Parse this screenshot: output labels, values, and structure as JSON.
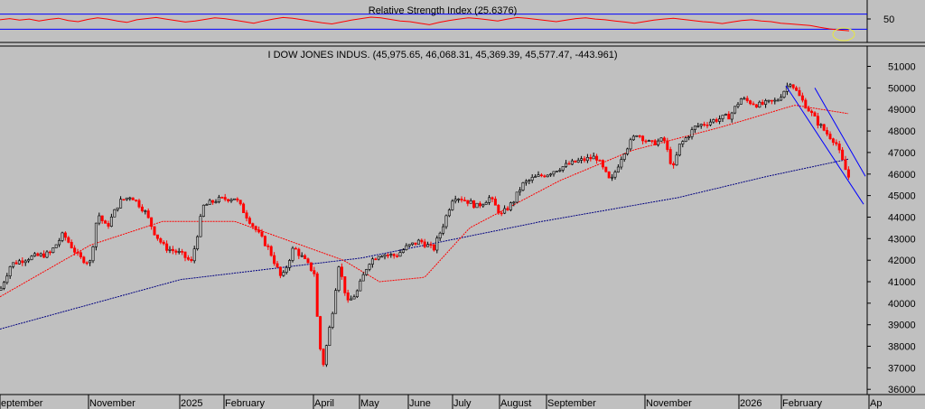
{
  "colors": {
    "background": "#c0c0c0",
    "candle_up": "#000000",
    "candle_down": "#ff0000",
    "ma_short": "#ff0000",
    "ma_long": "#000080",
    "rsi_line": "#ff0000",
    "rsi_levels": "#0000ff",
    "channel": "#0000ff",
    "highlight": "#e8e83c"
  },
  "chart_data": [
    {
      "type": "line",
      "panel": "rsi",
      "title": "Relative Strength Index (25.6376)",
      "series": [
        {
          "values": [
            55,
            58,
            54,
            57,
            52,
            56,
            59,
            53,
            50,
            56,
            60,
            57,
            52,
            48,
            55,
            58,
            61,
            57,
            53,
            49,
            52,
            56,
            60,
            58,
            54,
            50,
            46,
            52,
            57,
            61,
            59,
            55,
            51,
            47,
            44,
            49,
            54,
            58,
            62,
            60,
            56,
            52,
            50,
            46,
            42,
            48,
            53,
            57,
            60,
            58,
            55,
            52,
            57,
            61,
            59,
            56,
            53,
            50,
            54,
            58,
            60,
            57,
            55,
            52,
            49,
            46,
            50,
            54,
            57,
            59,
            56,
            53,
            50,
            48,
            45,
            49,
            53,
            55,
            52,
            50,
            46,
            44,
            42,
            40,
            35,
            31,
            28,
            26
          ]
        }
      ],
      "levels": [
        30,
        70
      ],
      "tick_labels": [
        "50"
      ]
    },
    {
      "type": "candlestick",
      "panel": "price",
      "title": "I DOW JONES INDUS. (45,975.65, 46,068.31, 45,369.39, 45,577.47, -443.961)",
      "x_labels": [
        "eptember",
        "November",
        "2025",
        "February",
        "April",
        "May",
        "June",
        "July",
        "August",
        "September",
        "November",
        "2026",
        "February",
        "Ap"
      ],
      "ylim": [
        35800,
        51400
      ],
      "y_ticks": [
        36000,
        37000,
        38000,
        39000,
        40000,
        41000,
        42000,
        43000,
        44000,
        45000,
        46000,
        47000,
        48000,
        49000,
        50000,
        51000
      ],
      "price_path": [
        [
          0,
          40600
        ],
        [
          12,
          41800
        ],
        [
          30,
          42100
        ],
        [
          55,
          42300
        ],
        [
          70,
          43200
        ],
        [
          88,
          42100
        ],
        [
          100,
          41900
        ],
        [
          108,
          44200
        ],
        [
          118,
          43500
        ],
        [
          132,
          44700
        ],
        [
          145,
          45000
        ],
        [
          160,
          44300
        ],
        [
          172,
          43200
        ],
        [
          182,
          42600
        ],
        [
          200,
          42300
        ],
        [
          212,
          41900
        ],
        [
          225,
          44500
        ],
        [
          240,
          44800
        ],
        [
          260,
          44900
        ],
        [
          280,
          43600
        ],
        [
          298,
          42500
        ],
        [
          312,
          41100
        ],
        [
          325,
          42600
        ],
        [
          335,
          42100
        ],
        [
          348,
          41400
        ],
        [
          353,
          38200
        ],
        [
          358,
          37200
        ],
        [
          368,
          39600
        ],
        [
          375,
          41800
        ],
        [
          385,
          40000
        ],
        [
          395,
          40500
        ],
        [
          408,
          41900
        ],
        [
          420,
          42300
        ],
        [
          438,
          42200
        ],
        [
          450,
          42600
        ],
        [
          465,
          42900
        ],
        [
          480,
          42500
        ],
        [
          492,
          43800
        ],
        [
          502,
          45000
        ],
        [
          515,
          44800
        ],
        [
          528,
          44500
        ],
        [
          542,
          44900
        ],
        [
          555,
          44100
        ],
        [
          568,
          44700
        ],
        [
          578,
          45500
        ],
        [
          590,
          45800
        ],
        [
          605,
          46000
        ],
        [
          620,
          46300
        ],
        [
          640,
          46600
        ],
        [
          660,
          46800
        ],
        [
          676,
          45600
        ],
        [
          690,
          47000
        ],
        [
          705,
          47900
        ],
        [
          720,
          47400
        ],
        [
          735,
          47600
        ],
        [
          745,
          46200
        ],
        [
          752,
          47300
        ],
        [
          770,
          48200
        ],
        [
          790,
          48500
        ],
        [
          808,
          48700
        ],
        [
          820,
          49500
        ],
        [
          840,
          49200
        ],
        [
          860,
          49400
        ],
        [
          875,
          50300
        ],
        [
          885,
          49600
        ],
        [
          895,
          49000
        ],
        [
          905,
          48400
        ],
        [
          915,
          47900
        ],
        [
          925,
          47500
        ],
        [
          935,
          46300
        ],
        [
          942,
          45600
        ]
      ],
      "series": [
        {
          "type": "line",
          "values": [
            [
              0,
              40300
            ],
            [
              100,
              42700
            ],
            [
              180,
              43800
            ],
            [
              260,
              43800
            ],
            [
              320,
              42900
            ],
            [
              380,
              42000
            ],
            [
              420,
              41000
            ],
            [
              470,
              41200
            ],
            [
              520,
              43500
            ],
            [
              620,
              45700
            ],
            [
              700,
              47100
            ],
            [
              800,
              48200
            ],
            [
              880,
              49200
            ],
            [
              940,
              48800
            ]
          ]
        },
        {
          "type": "line",
          "values": [
            [
              0,
              38800
            ],
            [
              200,
              41100
            ],
            [
              400,
              42100
            ],
            [
              600,
              43800
            ],
            [
              750,
              44900
            ],
            [
              850,
              45900
            ],
            [
              940,
              46700
            ]
          ]
        }
      ],
      "trend_channel": {
        "upper": [
          [
            902,
            50000
          ],
          [
            958,
            45900
          ]
        ],
        "lower": [
          [
            870,
            50100
          ],
          [
            956,
            44600
          ]
        ]
      }
    }
  ]
}
